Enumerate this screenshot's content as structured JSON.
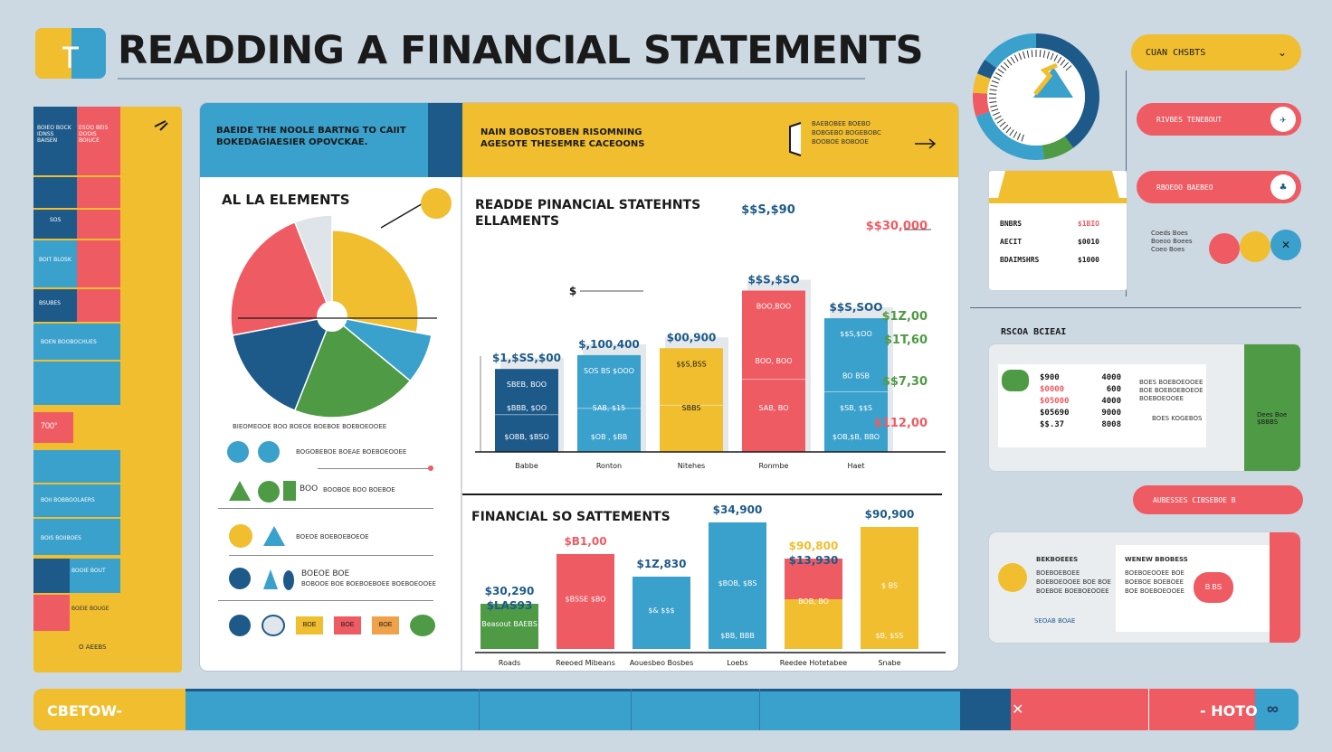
{
  "header": {
    "title": "READDING A FINANCIAL STATEMENTS",
    "logo_icon": "document-icon"
  },
  "colors": {
    "navy": "#1d5a8a",
    "blue": "#3aa0cc",
    "red": "#ef5b63",
    "yellow": "#f0be2e",
    "green": "#4e9a45",
    "bg": "#ccd8e2"
  },
  "left_column": {
    "rows": [
      "BOIEO BOCK IDNSS BAISEN",
      "ESOO BEIS DOOIS BOIUCE",
      "SOS",
      "BOIT BLOSK",
      "BSUBES",
      "BOEN BOOBOCHUES",
      "BOII BOBBOOLAERS",
      "BOIS BOIIBOES",
      "BOOIE BOUT",
      "BOEIE BOUGE",
      "O AEEBS"
    ],
    "badge": "700°"
  },
  "panel": {
    "banner_left": "BAEIDE THE NOOLE BARTNG TO CAIIT BOKEDAGIAESIER OPOVCKAE.",
    "banner_right": "NAIN BOBOSTOBEN RISOMNING AGESOTE THESEMRE CACEOONS",
    "banner_note": "BAEBOBEE BOEBO BOBGEBO BOGEBOBC BOOBOE BOBOOE",
    "pie_title": "AL LA ELEMENTS",
    "pie_caption": "BIEOMEOOE BOO BOEOE BOEBOE BOEBOEOOEE",
    "legend": [
      "BOGOBEBOE BOEAE BOEBOEOOEE",
      "BOOBOE BOO BOEBOE",
      "BOEOE BOEBOEBOEOE",
      "BOEOE BOE",
      "BOBOOE BOE BOEBOEBOEE BOEBOEOOEE"
    ],
    "legend_prefix": "BOO",
    "chips": [
      "BOE",
      "BOE",
      "BOE"
    ]
  },
  "chart_data": [
    {
      "type": "bar",
      "title": "READDE PINANCIAL STATEHNTS ELLAMENTS",
      "categories": [
        "Babbe",
        "Ronton",
        "Nitehes",
        "Ronmbe",
        "Haet"
      ],
      "values": [
        36,
        42,
        45,
        70,
        58
      ],
      "value_labels": [
        "$1,$SS,$00",
        "$,100,400",
        "$00,900",
        "$$S,$SO",
        "$$S,SOO"
      ],
      "upper_labels": [
        "SBEB, BOO",
        "SOS BS $OOO",
        "$$S,BSS",
        "BOO,BOO",
        "$$S,$OO"
      ],
      "mid_labels": [
        "",
        "",
        "",
        "BOO, BOO",
        "BO BSB"
      ],
      "low_labels": [
        "$BBB, $OO",
        "SAB, $15",
        "SBBS",
        "SAB, BO",
        "$SB, $$S"
      ],
      "base_labels": [
        "$OBB, $BSO",
        "$OB , $BB",
        "",
        "",
        "$OB,$B, BBO"
      ],
      "top_label": "$$S,$90",
      "side_labels": [
        "$$30,000",
        "$1Z,00",
        "$1T,60",
        "$$7,30",
        "$112,00"
      ],
      "axis_label": "$",
      "ylim": [
        0,
        100
      ]
    },
    {
      "type": "bar",
      "title": "FINANCIAL SO SATTEMENTS",
      "categories": [
        "Roads",
        "Reeoed Mibeans",
        "Aouesbeo Bosbes",
        "Loebs",
        "Reedee Hotetabee",
        "Snabe"
      ],
      "values": [
        20,
        42,
        32,
        56,
        40,
        54
      ],
      "top_labels": [
        "$30,290",
        "$B1,00",
        "$1Z,830",
        "$34,900",
        "$90,800",
        "$90,900"
      ],
      "sub_labels": [
        "$LAS93",
        "",
        "",
        "",
        "$13,930",
        ""
      ],
      "inner_labels": [
        "Beasout BAEBS",
        "$BSSE $BO",
        "$& $$$",
        "$BOB, $BS",
        "BOB, BO",
        "$ BS"
      ],
      "low_labels": [
        "",
        "",
        "",
        "$BB, BBB",
        "",
        "$B, $SS"
      ],
      "ylim": [
        0,
        100
      ]
    },
    {
      "type": "pie",
      "categories": [
        "yellow",
        "blue",
        "green",
        "navy",
        "red",
        "light"
      ],
      "values": [
        28,
        8,
        20,
        16,
        22,
        6
      ]
    }
  ],
  "right_panel": {
    "dropdown": "CUAN CHSBTS",
    "pill1": "RIVBES TENEBOUT",
    "pill2": "RBOEOO BAEBEO",
    "card_rows": [
      {
        "k": "BNBRS",
        "v": "$1BIO"
      },
      {
        "k": "AECIT",
        "v": "$0010"
      },
      {
        "k": "BDAIMSHRS",
        "v": "$1000"
      }
    ],
    "dots_label": "Coeds Boes Boeoo Boees Coeo Boes",
    "section_label": "RSCOA BCIEAI",
    "table_rows": [
      {
        "a": "$900",
        "b": "4000"
      },
      {
        "a": "$0000",
        "b": "600"
      },
      {
        "a": "$05000",
        "b": "4000"
      },
      {
        "a": "$05690",
        "b": "9000"
      },
      {
        "a": "$$.37",
        "b": "8008"
      }
    ],
    "table_mid": "BOES BOEBOEOOEE BOE BOEBOEBOEOE BOEBOEOOEE",
    "table_mid2": "BOES KOGEBOS",
    "table_right": "Dees Boe $BBBS",
    "pill3": "AUBESSES CIBSEBOE B",
    "bottom_card_h1": "BEKBOEEES",
    "bottom_card_h2": "WENEW BBOBESS",
    "bottom_card_text": "BOEBOEBOEE BOEBOEOOEE BOE BOE BOEBOE BOEBOEOOEE",
    "bottom_card_link": "SEOAB BOAE",
    "bottom_card_pill": "B BS",
    "bottom_card_right_text": "BOEBOEOOEE BOE BOEBOE BOEBOEE BOE BOEBOEOOEE"
  },
  "footer": {
    "left": "CBETOW-",
    "right": "- HOTO",
    "end_icon": "infinity-icon"
  }
}
